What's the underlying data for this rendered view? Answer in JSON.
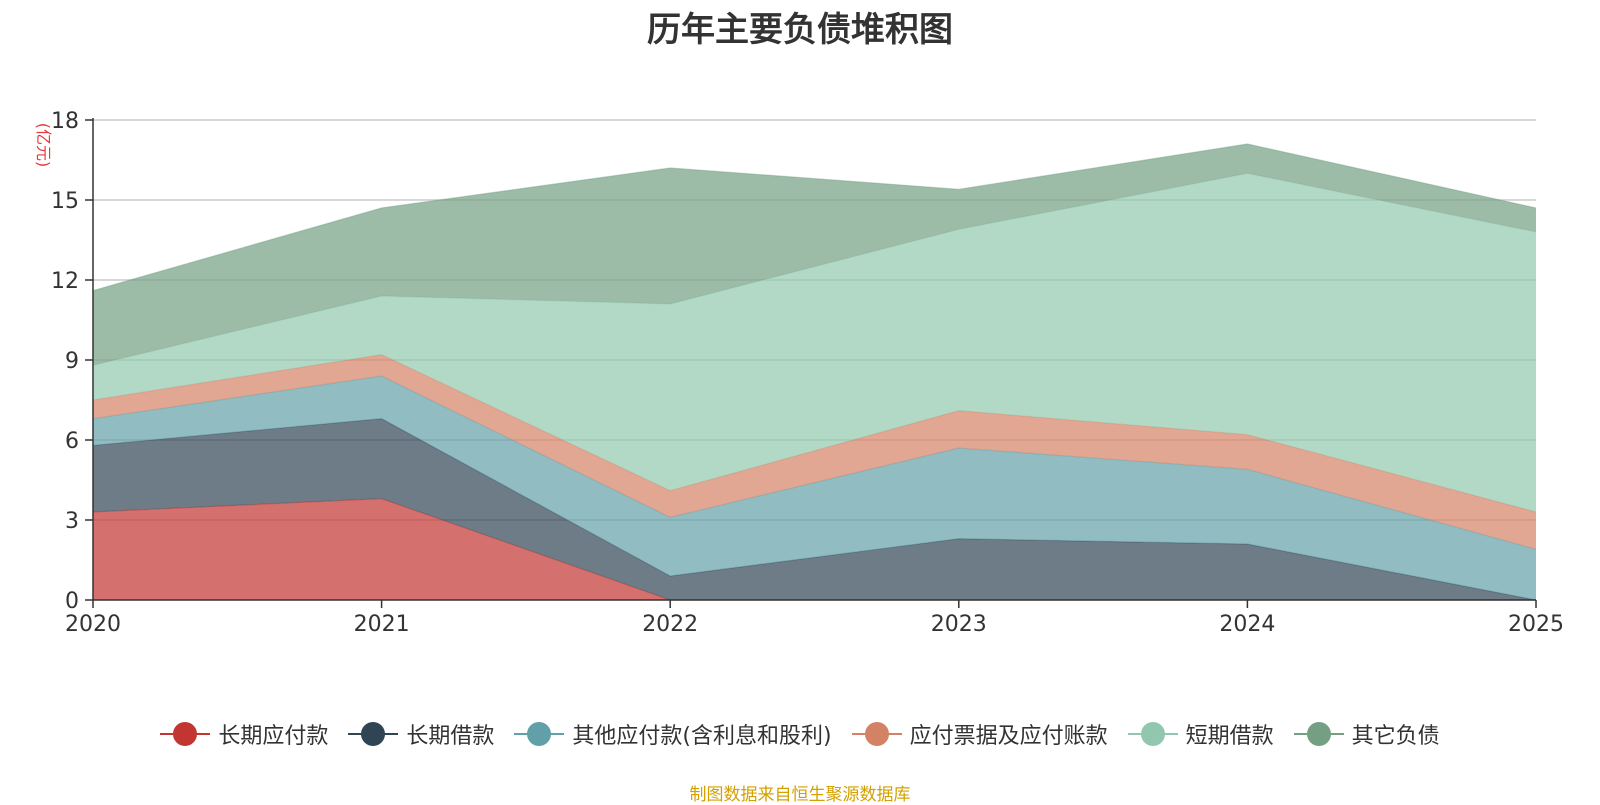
{
  "chart_data": {
    "type": "area",
    "stacked": true,
    "title": "历年主要负债堆积图",
    "ylabel": "(亿元)",
    "xlabel": "",
    "ylim": [
      0,
      18
    ],
    "yticks": [
      0,
      3,
      6,
      9,
      12,
      15,
      18
    ],
    "categories": [
      "2020",
      "2021",
      "2022",
      "2023",
      "2024",
      "2025"
    ],
    "grid": true,
    "legend_position": "bottom",
    "series": [
      {
        "name": "长期应付款",
        "color": "#c23531",
        "values": [
          3.3,
          3.8,
          0.0,
          0.0,
          0.0,
          0.0
        ]
      },
      {
        "name": "长期借款",
        "color": "#2f4554",
        "values": [
          2.5,
          3.0,
          0.9,
          2.3,
          2.1,
          0.0
        ]
      },
      {
        "name": "其他应付款(含利息和股利)",
        "color": "#61a0a8",
        "values": [
          1.0,
          1.6,
          2.2,
          3.4,
          2.8,
          1.9
        ]
      },
      {
        "name": "应付票据及应付账款",
        "color": "#d48265",
        "values": [
          0.7,
          0.8,
          1.0,
          1.4,
          1.3,
          1.4
        ]
      },
      {
        "name": "短期借款",
        "color": "#91c7ae",
        "values": [
          1.3,
          2.2,
          7.0,
          6.8,
          9.8,
          10.5
        ]
      },
      {
        "name": "其它负债",
        "color": "#749f83",
        "values": [
          2.8,
          3.3,
          5.1,
          1.5,
          1.1,
          0.9
        ]
      }
    ]
  },
  "source_note": "制图数据来自恒生聚源数据库"
}
